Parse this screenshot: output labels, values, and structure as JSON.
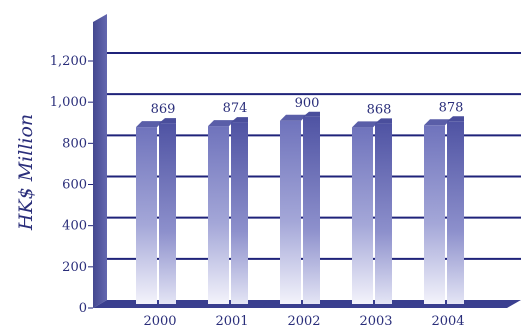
{
  "chart_data": {
    "type": "bar",
    "categories": [
      "2000",
      "2001",
      "2002",
      "2003",
      "2004"
    ],
    "values": [
      869,
      874,
      900,
      868,
      878
    ],
    "ylabel": "HK$ Million",
    "yticks": [
      "0",
      "200",
      "400",
      "600",
      "800",
      "1,000",
      "1,200"
    ],
    "ylim": [
      0,
      1200
    ],
    "grid": true,
    "colors": {
      "axis": "#3a3f8f",
      "grid": "#1f237a",
      "text": "#2a2e7a",
      "bar_dark": "#6a6fb8",
      "bar_light": "#f2f2fa"
    }
  }
}
